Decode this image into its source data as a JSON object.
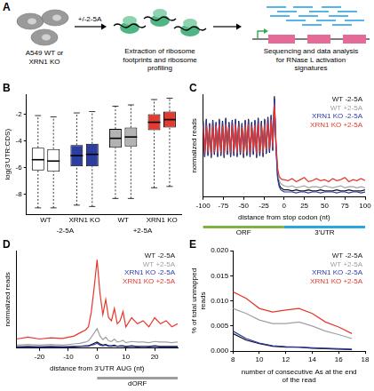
{
  "diagram": {
    "panel": "A",
    "cells": "A549 WT or XRN1 KO",
    "treatment": "+/-2-5A",
    "step_2": "Extraction of ribosome footprints and ribosome profiling",
    "step_3": "Sequencing and data analysis for RNase L activation signatures"
  },
  "chart_data": [
    {
      "panel": "B",
      "type": "box",
      "y_label": "log(3'UTR:CDS)",
      "categories": [
        "WT",
        "XRN1 KO",
        "WT",
        "XRN1 KO"
      ],
      "group_labels": [
        "-2-5A",
        "+2-5A"
      ],
      "colors": [
        "#ffffff",
        "#2c3e9f",
        "#b3b3b3",
        "#e53a2f"
      ],
      "boxes": [
        [
          {
            "min": -9.0,
            "q1": -6.2,
            "median": -5.4,
            "q3": -4.5,
            "max": -2.1
          },
          {
            "min": -9.0,
            "q1": -6.3,
            "median": -5.5,
            "q3": -4.6,
            "max": -2.2
          }
        ],
        [
          {
            "min": -8.8,
            "q1": -5.9,
            "median": -5.1,
            "q3": -4.3,
            "max": -1.9
          },
          {
            "min": -8.9,
            "q1": -5.9,
            "median": -5.0,
            "q3": -4.2,
            "max": -1.8
          }
        ],
        [
          {
            "min": -8.3,
            "q1": -4.5,
            "median": -3.8,
            "q3": -3.1,
            "max": -1.4
          },
          {
            "min": -8.3,
            "q1": -4.4,
            "median": -3.7,
            "q3": -3.0,
            "max": -1.3
          }
        ],
        [
          {
            "min": -7.5,
            "q1": -3.2,
            "median": -2.6,
            "q3": -2.0,
            "max": -0.9
          },
          {
            "min": -7.4,
            "q1": -3.0,
            "median": -2.4,
            "q3": -1.8,
            "max": -0.8
          }
        ]
      ],
      "ylim": [
        -9.5,
        -0.5
      ],
      "yticks": [
        -8,
        -6,
        -4,
        -2
      ],
      "grid": false
    },
    {
      "panel": "C",
      "type": "line",
      "x_label": "distance from stop codon (nt)",
      "y_label": "normalized reads",
      "x": [
        -100,
        -98,
        -96,
        -94,
        -92,
        -90,
        -88,
        -86,
        -84,
        -82,
        -80,
        -78,
        -76,
        -74,
        -72,
        -70,
        -68,
        -66,
        -64,
        -62,
        -60,
        -58,
        -56,
        -54,
        -52,
        -50,
        -48,
        -46,
        -44,
        -42,
        -40,
        -38,
        -36,
        -34,
        -32,
        -30,
        -28,
        -26,
        -24,
        -22,
        -20,
        -18,
        -16,
        -14,
        -12,
        -10,
        -8,
        -6,
        -4,
        -2,
        0,
        5,
        10,
        15,
        20,
        25,
        30,
        35,
        40,
        45,
        50,
        55,
        60,
        65,
        70,
        75,
        80,
        85,
        90,
        95,
        100
      ],
      "series": [
        {
          "name": "WT -2-5A",
          "color": "#111111",
          "values": [
            7.4,
            3.9,
            7.6,
            4.0,
            7.2,
            3.8,
            7.5,
            4.1,
            7.3,
            3.9,
            7.6,
            4.0,
            7.4,
            3.8,
            7.7,
            4.1,
            7.3,
            3.9,
            7.5,
            4.0,
            7.6,
            3.9,
            7.4,
            4.1,
            7.2,
            3.8,
            7.5,
            4.0,
            7.6,
            3.9,
            7.3,
            4.1,
            7.5,
            3.8,
            7.7,
            4.0,
            7.4,
            3.9,
            7.6,
            4.2,
            7.8,
            4.3,
            8.0,
            4.5,
            9.8,
            5.0,
            2.0,
            1.2,
            0.9,
            0.8,
            0.7,
            0.7,
            0.6,
            0.7,
            0.6,
            0.6,
            0.7,
            0.6,
            0.6,
            0.7,
            0.6,
            0.6,
            0.6,
            0.7,
            0.6,
            0.6,
            0.7,
            0.6,
            0.6,
            0.6,
            0.7
          ]
        },
        {
          "name": "WT +2-5A",
          "color": "#a0a0a0",
          "values": [
            7.0,
            4.2,
            7.1,
            4.3,
            6.9,
            4.1,
            7.1,
            4.3,
            7.0,
            4.2,
            7.2,
            4.3,
            7.0,
            4.1,
            7.2,
            4.4,
            6.9,
            4.2,
            7.1,
            4.3,
            7.2,
            4.2,
            7.0,
            4.4,
            6.9,
            4.1,
            7.1,
            4.3,
            7.2,
            4.2,
            7.0,
            4.4,
            7.1,
            4.1,
            7.3,
            4.3,
            7.0,
            4.2,
            7.2,
            4.5,
            7.4,
            4.6,
            7.6,
            4.8,
            9.2,
            5.2,
            2.4,
            1.6,
            1.3,
            1.2,
            1.1,
            1.0,
            1.1,
            0.9,
            1.0,
            1.1,
            0.9,
            1.0,
            1.0,
            0.9,
            1.1,
            1.0,
            0.9,
            1.0,
            1.1,
            0.9,
            1.0,
            1.0,
            0.9,
            1.0,
            0.9
          ]
        },
        {
          "name": "XRN1 KO -2-5A",
          "color": "#2a3aa8",
          "values": [
            7.3,
            4.0,
            7.5,
            4.1,
            7.1,
            3.9,
            7.4,
            4.2,
            7.2,
            4.0,
            7.5,
            4.1,
            7.3,
            3.9,
            7.6,
            4.2,
            7.2,
            4.0,
            7.4,
            4.1,
            7.5,
            4.0,
            7.3,
            4.2,
            7.1,
            3.9,
            7.4,
            4.1,
            7.5,
            4.0,
            7.2,
            4.2,
            7.4,
            3.9,
            7.6,
            4.1,
            7.3,
            4.0,
            7.5,
            4.3,
            7.7,
            4.4,
            7.9,
            4.6,
            9.6,
            4.8,
            1.8,
            1.0,
            0.7,
            0.6,
            0.5,
            0.5,
            0.5,
            0.4,
            0.5,
            0.5,
            0.4,
            0.5,
            0.5,
            0.4,
            0.5,
            0.5,
            0.5,
            0.4,
            0.5,
            0.5,
            0.4,
            0.5,
            0.5,
            0.4,
            0.5
          ]
        },
        {
          "name": "XRN1 KO +2-5A",
          "color": "#e8352b",
          "values": [
            6.9,
            4.3,
            7.0,
            4.4,
            6.8,
            4.2,
            7.0,
            4.4,
            6.9,
            4.3,
            7.1,
            4.4,
            6.9,
            4.2,
            7.1,
            4.5,
            6.8,
            4.3,
            7.0,
            4.4,
            7.1,
            4.3,
            6.9,
            4.5,
            6.8,
            4.2,
            7.0,
            4.4,
            7.1,
            4.3,
            6.9,
            4.5,
            7.0,
            4.2,
            7.2,
            4.4,
            6.9,
            4.3,
            7.1,
            4.6,
            7.3,
            4.7,
            7.5,
            4.9,
            9.0,
            5.4,
            2.8,
            2.0,
            1.8,
            1.7,
            1.7,
            1.6,
            1.8,
            1.5,
            1.7,
            1.9,
            1.5,
            1.6,
            1.8,
            1.6,
            1.7,
            1.5,
            1.8,
            1.6,
            1.7,
            1.9,
            1.5,
            1.7,
            1.6,
            1.8,
            1.6
          ]
        }
      ],
      "regions": [
        {
          "label": "ORF",
          "from": -100,
          "to": 0,
          "color": "#7cb342"
        },
        {
          "label": "3'UTR",
          "from": 0,
          "to": 100,
          "color": "#29a8e0"
        }
      ],
      "xlim": [
        -100,
        100
      ],
      "xticks": [
        -100,
        -75,
        -50,
        -25,
        0,
        25,
        50,
        75,
        100
      ],
      "ylim": [
        0,
        10
      ],
      "tick_labels": "x",
      "legend": "upper right",
      "grid": false
    },
    {
      "panel": "D",
      "type": "line",
      "x_label": "distance from 3'UTR AUG (nt)",
      "y_label": "normalized reads",
      "x": [
        -28,
        -24,
        -20,
        -16,
        -12,
        -8,
        -6,
        -4,
        -3,
        -2,
        -1,
        0,
        1,
        2,
        3,
        4,
        5,
        6,
        7,
        8,
        9,
        10,
        12,
        14,
        16,
        18,
        20,
        22,
        24,
        26,
        28
      ],
      "series": [
        {
          "name": "WT -2-5A",
          "color": "#111111",
          "values": [
            0.02,
            0.03,
            0.02,
            0.03,
            0.02,
            0.03,
            0.03,
            0.04,
            0.04,
            0.06,
            0.08,
            0.1,
            0.07,
            0.05,
            0.06,
            0.04,
            0.04,
            0.05,
            0.03,
            0.04,
            0.04,
            0.03,
            0.04,
            0.03,
            0.03,
            0.03,
            0.04,
            0.03,
            0.03,
            0.03,
            0.03
          ]
        },
        {
          "name": "WT +2-5A",
          "color": "#a0a0a0",
          "values": [
            0.05,
            0.06,
            0.05,
            0.06,
            0.05,
            0.07,
            0.08,
            0.1,
            0.12,
            0.18,
            0.25,
            0.32,
            0.2,
            0.14,
            0.18,
            0.12,
            0.11,
            0.15,
            0.1,
            0.11,
            0.13,
            0.09,
            0.11,
            0.1,
            0.1,
            0.09,
            0.11,
            0.1,
            0.1,
            0.09,
            0.1
          ]
        },
        {
          "name": "XRN1 KO -2-5A",
          "color": "#2a3aa8",
          "values": [
            0.02,
            0.02,
            0.02,
            0.02,
            0.02,
            0.02,
            0.03,
            0.03,
            0.03,
            0.05,
            0.06,
            0.08,
            0.05,
            0.04,
            0.05,
            0.03,
            0.03,
            0.04,
            0.03,
            0.03,
            0.03,
            0.02,
            0.03,
            0.02,
            0.03,
            0.02,
            0.03,
            0.02,
            0.02,
            0.02,
            0.02
          ]
        },
        {
          "name": "XRN1 KO +2-5A",
          "color": "#e8352b",
          "values": [
            0.15,
            0.18,
            0.15,
            0.17,
            0.16,
            0.2,
            0.25,
            0.3,
            0.35,
            0.6,
            1.0,
            1.45,
            0.9,
            0.55,
            0.8,
            0.5,
            0.45,
            0.65,
            0.4,
            0.45,
            0.6,
            0.35,
            0.5,
            0.4,
            0.45,
            0.35,
            0.5,
            0.4,
            0.45,
            0.35,
            0.4
          ]
        }
      ],
      "regions": [
        {
          "label": "dORF",
          "from": 0,
          "to": 28,
          "color": "#9e9e9e"
        }
      ],
      "xlim": [
        -28,
        28
      ],
      "xticks": [
        -20,
        -10,
        0,
        10,
        20
      ],
      "ylim": [
        0,
        1.6
      ],
      "tick_labels": "x",
      "legend": "upper right",
      "grid": false
    },
    {
      "panel": "E",
      "type": "line",
      "x_label": "number of consecutive As at the end of the read",
      "y_label": "% of total unmapped reads",
      "x": [
        8,
        9,
        10,
        11,
        12,
        13,
        14,
        15,
        16,
        17
      ],
      "series": [
        {
          "name": "WT -2-5A",
          "color": "#111111",
          "values": [
            0.0035,
            0.0022,
            0.0015,
            0.001,
            0.0008,
            0.0008,
            0.0006,
            0.0005,
            0.0004,
            0.0003
          ]
        },
        {
          "name": "WT +2-5A",
          "color": "#a0a0a0",
          "values": [
            0.0085,
            0.0075,
            0.0062,
            0.0055,
            0.0055,
            0.0058,
            0.005,
            0.004,
            0.0033,
            0.0025
          ]
        },
        {
          "name": "XRN1 KO -2-5A",
          "color": "#2a3aa8",
          "values": [
            0.004,
            0.0025,
            0.0016,
            0.0011,
            0.0009,
            0.0008,
            0.0007,
            0.0006,
            0.0005,
            0.0004
          ]
        },
        {
          "name": "XRN1 KO +2-5A",
          "color": "#e8352b",
          "values": [
            0.0118,
            0.0105,
            0.0085,
            0.0078,
            0.0082,
            0.0085,
            0.0075,
            0.0058,
            0.0048,
            0.0035
          ]
        }
      ],
      "xlim": [
        8,
        18
      ],
      "xticks": [
        8,
        10,
        12,
        14,
        16,
        18
      ],
      "ylim": [
        0,
        0.02
      ],
      "yticks": [
        {
          "value": 0,
          "label": "0.000"
        },
        0.005,
        {
          "value": 0.01,
          "label": "0.010"
        },
        0.015,
        {
          "value": 0.02,
          "label": "0.020"
        }
      ],
      "legend": "upper right",
      "grid": false
    }
  ]
}
